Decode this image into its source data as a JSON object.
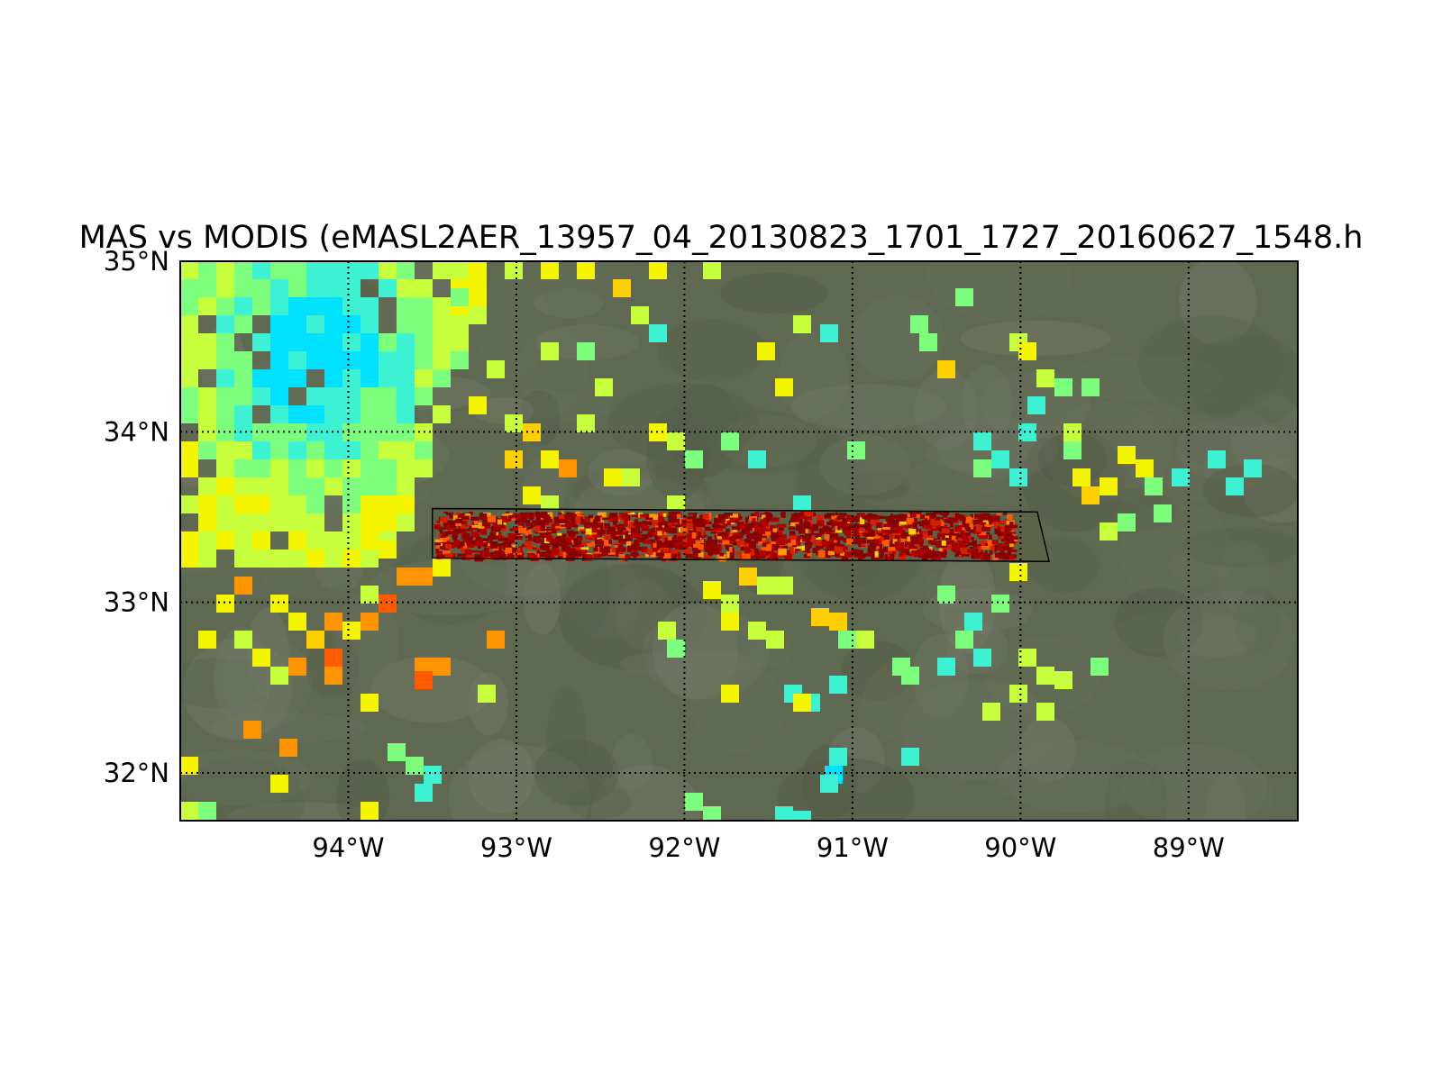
{
  "title": "MAS vs MODIS (eMASL2AER_13957_04_20130823_1701_1727_20160627_1548.h",
  "map": {
    "lon_range": [
      -95.0,
      -88.35
    ],
    "lat_range": [
      31.72,
      35.0
    ],
    "graticule": "dotted",
    "lon_ticks": [
      {
        "value": -94,
        "label": "94°W"
      },
      {
        "value": -93,
        "label": "93°W"
      },
      {
        "value": -92,
        "label": "92°W"
      },
      {
        "value": -91,
        "label": "91°W"
      },
      {
        "value": -90,
        "label": "90°W"
      },
      {
        "value": -89,
        "label": "89°W"
      }
    ],
    "lat_ticks": [
      {
        "value": 35,
        "label": "35°N"
      },
      {
        "value": 34,
        "label": "34°N"
      },
      {
        "value": 33,
        "label": "33°N"
      },
      {
        "value": 32,
        "label": "32°N"
      }
    ],
    "background_color": "#5f6850",
    "flight_swath": {
      "outline_color": "#000000",
      "corners_lonlat": [
        [
          -93.5,
          33.55
        ],
        [
          -89.9,
          33.53
        ],
        [
          -89.83,
          33.24
        ],
        [
          -93.5,
          33.26
        ]
      ],
      "fill_colors": [
        "#8b0000",
        "#b00000",
        "#d22000",
        "#ff5a00",
        "#ff9a00",
        "#ffd000"
      ]
    },
    "modis_colors": {
      "cyan": "#00e0ff",
      "aqua": "#3cf2d2",
      "green": "#7dff7d",
      "yellow_green": "#c8ff3c",
      "yellow": "#f5f500",
      "gold": "#ffd000",
      "orange": "#ff9400",
      "red_orange": "#ff5a00"
    }
  }
}
